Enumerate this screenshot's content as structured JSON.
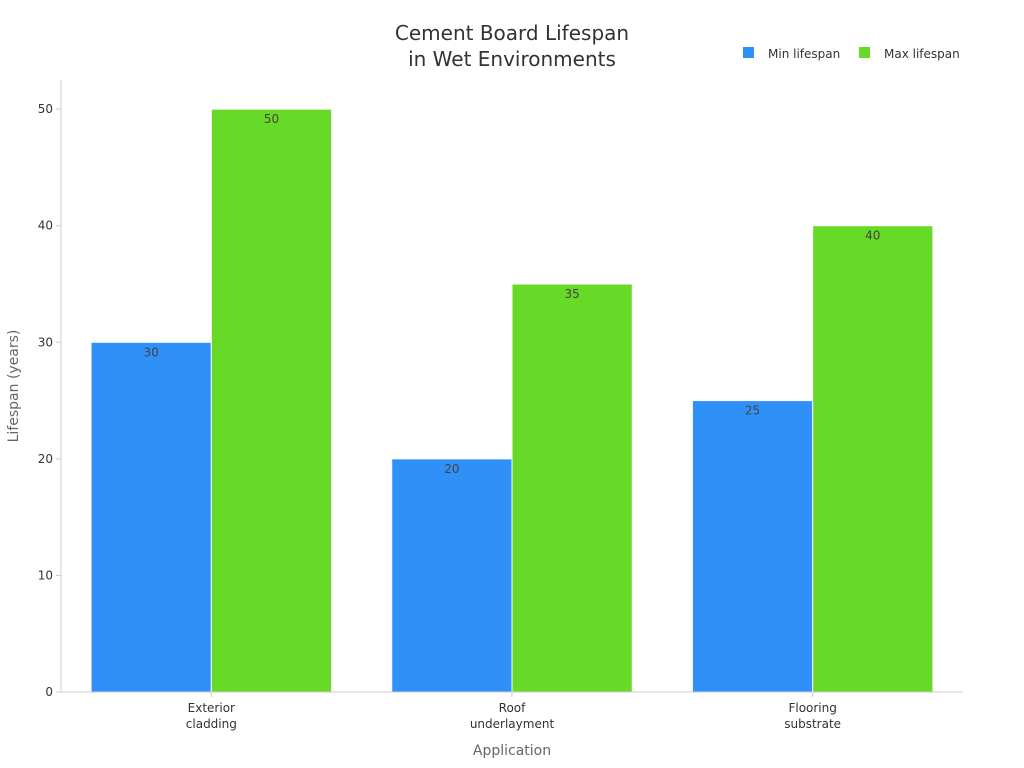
{
  "chart_data": {
    "type": "bar",
    "title": [
      "Cement Board Lifespan",
      "in Wet Environments"
    ],
    "xlabel": "Application",
    "ylabel": "Lifespan (years)",
    "categories": [
      [
        "Exterior",
        "cladding"
      ],
      [
        "Roof",
        "underlayment"
      ],
      [
        "Flooring",
        "substrate"
      ]
    ],
    "series": [
      {
        "name": "Min lifespan",
        "color": "#2f90f7",
        "values": [
          30,
          20,
          25
        ]
      },
      {
        "name": "Max lifespan",
        "color": "#66da26",
        "values": [
          50,
          35,
          40
        ]
      }
    ],
    "ylim": [
      0,
      52.5
    ],
    "yticks": [
      0,
      10,
      20,
      30,
      40,
      50
    ],
    "grid": false,
    "legend": "top-right"
  }
}
